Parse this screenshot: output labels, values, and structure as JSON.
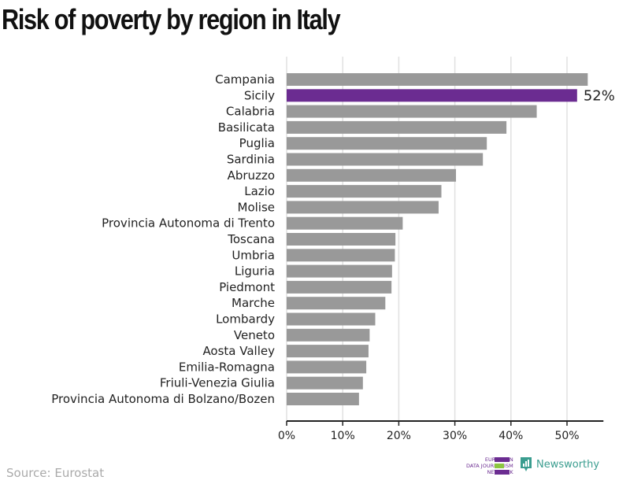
{
  "title": "Risk of poverty by region in Italy",
  "source": "Source: Eurostat",
  "logos": {
    "ejn": [
      "EUROPEAN",
      "DATA JOURNALISM",
      "NETWORK"
    ],
    "newsworthy": "Newsworthy"
  },
  "colors": {
    "bar": "#999999",
    "highlight": "#6b2c91",
    "grid": "#e0e0e0"
  },
  "chart_data": {
    "type": "bar",
    "orientation": "horizontal",
    "categories": [
      "Campania",
      "Sicily",
      "Calabria",
      "Basilicata",
      "Puglia",
      "Sardinia",
      "Abruzzo",
      "Lazio",
      "Molise",
      "Provincia Autonoma di Trento",
      "Toscana",
      "Umbria",
      "Liguria",
      "Piedmont",
      "Marche",
      "Lombardy",
      "Veneto",
      "Aosta Valley",
      "Emilia-Romagna",
      "Friuli-Venezia Giulia",
      "Provincia Autonoma di Bolzano/Bozen"
    ],
    "values": [
      53.7,
      51.8,
      44.6,
      39.2,
      35.7,
      35.0,
      30.2,
      27.6,
      27.1,
      20.7,
      19.4,
      19.3,
      18.8,
      18.7,
      17.6,
      15.8,
      14.8,
      14.6,
      14.2,
      13.6,
      12.9
    ],
    "highlight": "Sicily",
    "annotation": "52%",
    "xticks": [
      "0%",
      "10%",
      "20%",
      "30%",
      "40%",
      "50%"
    ],
    "xtick_values": [
      0,
      10,
      20,
      30,
      40,
      50
    ],
    "xlim": [
      0,
      56.5
    ],
    "grid": true,
    "unit": "%"
  }
}
